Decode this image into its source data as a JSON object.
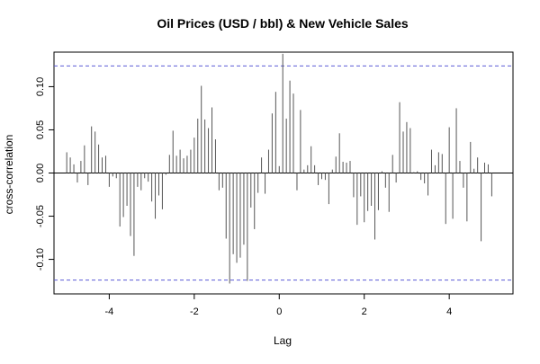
{
  "chart_data": {
    "type": "bar",
    "title": "Oil Prices (USD / bbl) & New Vehicle Sales",
    "xlabel": "Lag",
    "ylabel": "cross-correlation",
    "xlim": [
      -5.3,
      5.5
    ],
    "ylim": [
      -0.14,
      0.14
    ],
    "x_ticks": [
      -4,
      -2,
      0,
      2,
      4
    ],
    "x_tick_labels": [
      "-4",
      "-2",
      "0",
      "2",
      "4"
    ],
    "y_ticks": [
      -0.1,
      -0.05,
      0.0,
      0.05,
      0.1
    ],
    "y_tick_labels": [
      "-0.10",
      "-0.05",
      "0.00",
      "0.05",
      "0.10"
    ],
    "confidence_limit": 0.124,
    "confidence_line_color": "#5b5bd6",
    "bar_color": "#555555",
    "grid": false,
    "lags": [
      -5.0,
      -4.917,
      -4.833,
      -4.75,
      -4.667,
      -4.583,
      -4.5,
      -4.417,
      -4.333,
      -4.25,
      -4.167,
      -4.083,
      -4.0,
      -3.917,
      -3.833,
      -3.75,
      -3.667,
      -3.583,
      -3.5,
      -3.417,
      -3.333,
      -3.25,
      -3.167,
      -3.083,
      -3.0,
      -2.917,
      -2.833,
      -2.75,
      -2.667,
      -2.583,
      -2.5,
      -2.417,
      -2.333,
      -2.25,
      -2.167,
      -2.083,
      -2.0,
      -1.917,
      -1.833,
      -1.75,
      -1.667,
      -1.583,
      -1.5,
      -1.417,
      -1.333,
      -1.25,
      -1.167,
      -1.083,
      -1.0,
      -0.917,
      -0.833,
      -0.75,
      -0.667,
      -0.583,
      -0.5,
      -0.417,
      -0.333,
      -0.25,
      -0.167,
      -0.083,
      0.0,
      0.083,
      0.167,
      0.25,
      0.333,
      0.417,
      0.5,
      0.583,
      0.667,
      0.75,
      0.833,
      0.917,
      1.0,
      1.083,
      1.167,
      1.25,
      1.333,
      1.417,
      1.5,
      1.583,
      1.667,
      1.75,
      1.833,
      1.917,
      2.0,
      2.083,
      2.167,
      2.25,
      2.333,
      2.417,
      2.5,
      2.583,
      2.667,
      2.75,
      2.833,
      2.917,
      3.0,
      3.083,
      3.167,
      3.25,
      3.333,
      3.417,
      3.5,
      3.583,
      3.667,
      3.75,
      3.833,
      3.917,
      4.0,
      4.083,
      4.167,
      4.25,
      4.333,
      4.417,
      4.5,
      4.583,
      4.667,
      4.75,
      4.833,
      4.917,
      5.0
    ],
    "values": [
      0.024,
      0.018,
      0.01,
      -0.011,
      0.014,
      0.032,
      -0.014,
      0.054,
      0.048,
      0.033,
      0.018,
      0.02,
      -0.016,
      -0.004,
      -0.006,
      -0.062,
      -0.051,
      -0.038,
      -0.073,
      -0.096,
      -0.016,
      -0.02,
      -0.006,
      -0.01,
      -0.033,
      -0.053,
      -0.026,
      -0.042,
      -0.002,
      0.021,
      0.049,
      0.02,
      0.027,
      0.017,
      0.02,
      0.027,
      0.041,
      0.063,
      0.101,
      0.062,
      0.052,
      0.076,
      0.039,
      -0.02,
      -0.017,
      -0.076,
      -0.128,
      -0.094,
      -0.104,
      -0.098,
      -0.083,
      -0.125,
      -0.04,
      -0.065,
      -0.023,
      0.018,
      -0.024,
      0.027,
      0.069,
      0.094,
      0.008,
      0.138,
      0.063,
      0.107,
      0.092,
      -0.02,
      0.073,
      0.004,
      0.009,
      0.031,
      0.009,
      -0.014,
      -0.007,
      -0.008,
      -0.036,
      0.004,
      0.019,
      0.046,
      0.013,
      0.012,
      0.014,
      -0.028,
      -0.06,
      -0.027,
      -0.057,
      -0.044,
      -0.038,
      -0.077,
      -0.043,
      0.002,
      -0.017,
      -0.045,
      0.021,
      -0.011,
      0.082,
      0.048,
      0.059,
      0.052,
      0.001,
      0.002,
      -0.008,
      -0.012,
      -0.026,
      0.027,
      0.009,
      0.024,
      0.022,
      -0.059,
      0.053,
      -0.053,
      0.075,
      0.014,
      -0.017,
      -0.056,
      0.036,
      0.005,
      0.018,
      -0.079,
      0.012,
      0.01,
      -0.027
    ]
  }
}
